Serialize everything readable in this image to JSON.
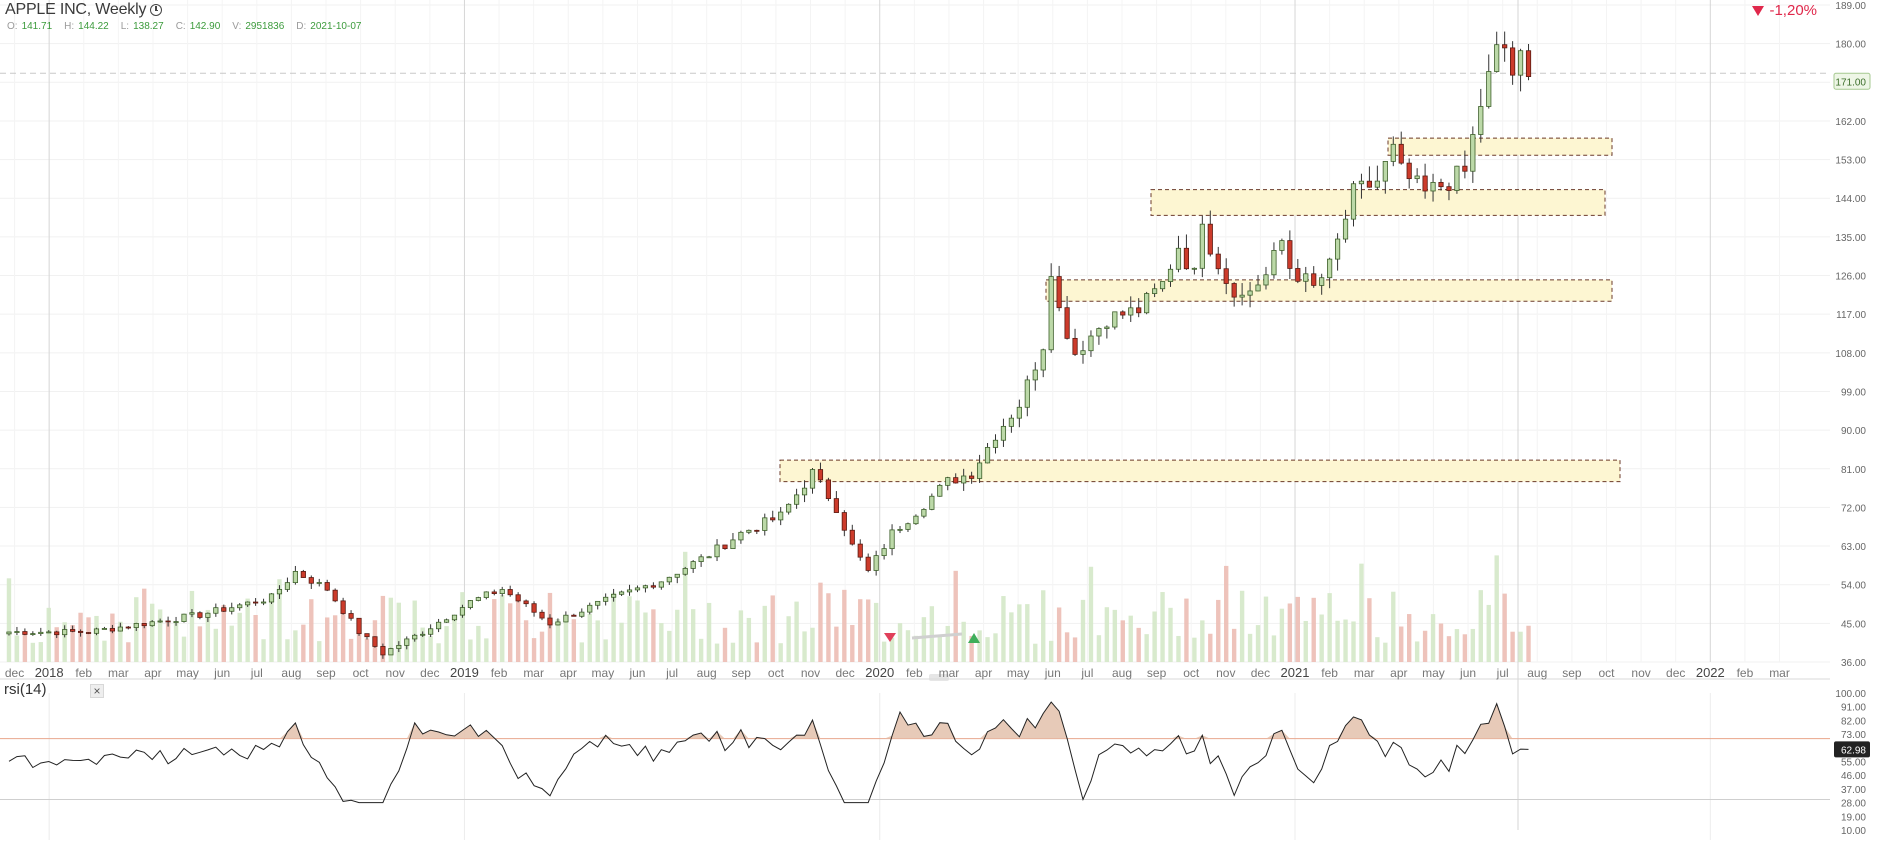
{
  "header": {
    "title": "APPLE INC, Weekly",
    "ohlc": [
      {
        "key": "O:",
        "value": "141.71"
      },
      {
        "key": "H:",
        "value": "144.22"
      },
      {
        "key": "L:",
        "value": "138.27"
      },
      {
        "key": "C:",
        "value": "142.90"
      },
      {
        "key": "V:",
        "value": "2951836"
      },
      {
        "key": "D:",
        "value": "2021-10-07"
      }
    ],
    "change": "-1,20%"
  },
  "rsi": {
    "label": "rsi(14)",
    "close": "×"
  },
  "colors": {
    "up": "#6aa84f",
    "down": "#cc3b2b",
    "zone_fill": "#fdf6d2",
    "rsi_fill": "#e4c4b0",
    "vol_up": "#d4e8c8",
    "vol_down": "#ecbcb4",
    "change": "#e0284b"
  },
  "chart_data": {
    "type": "candlestick",
    "price_axis": {
      "ticks": [
        "189.00",
        "180.00",
        "171.00",
        "162.00",
        "153.00",
        "144.00",
        "135.00",
        "126.00",
        "117.00",
        "108.00",
        "99.00",
        "90.00",
        "81.00",
        "72.00",
        "63.00",
        "54.00",
        "45.00",
        "36.00"
      ],
      "range": [
        36,
        189
      ],
      "current": "171.00"
    },
    "rsi_axis": {
      "ticks": [
        "100.00",
        "91.00",
        "82.00",
        "73.00",
        "64.00",
        "55.00",
        "46.00",
        "37.00",
        "28.00",
        "19.00",
        "10.00"
      ],
      "range": [
        10,
        100
      ],
      "current": "62.98",
      "overbought": 70,
      "oversold": 30
    },
    "time_axis": [
      "dec",
      "2018",
      "feb",
      "mar",
      "apr",
      "may",
      "jun",
      "jul",
      "aug",
      "sep",
      "oct",
      "nov",
      "dec",
      "2019",
      "feb",
      "mar",
      "apr",
      "may",
      "jun",
      "jul",
      "aug",
      "sep",
      "oct",
      "nov",
      "dec",
      "2020",
      "feb",
      "mar",
      "apr",
      "may",
      "jun",
      "jul",
      "aug",
      "sep",
      "oct",
      "nov",
      "dec",
      "2021",
      "feb",
      "mar",
      "apr",
      "may",
      "jun",
      "jul",
      "aug",
      "sep",
      "oct",
      "nov",
      "dec",
      "2022",
      "feb",
      "mar"
    ],
    "zones": [
      {
        "low": 154,
        "high": 158
      },
      {
        "low": 140,
        "high": 146
      },
      {
        "low": 120,
        "high": 125
      },
      {
        "low": 78,
        "high": 83
      }
    ],
    "close_anchors": [
      [
        0,
        43
      ],
      [
        10,
        43
      ],
      [
        24,
        47
      ],
      [
        33,
        51
      ],
      [
        36,
        57
      ],
      [
        40,
        53
      ],
      [
        44,
        43
      ],
      [
        47,
        38
      ],
      [
        52,
        43
      ],
      [
        58,
        50
      ],
      [
        62,
        53
      ],
      [
        68,
        45
      ],
      [
        76,
        51
      ],
      [
        82,
        55
      ],
      [
        88,
        61
      ],
      [
        92,
        66
      ],
      [
        97,
        70
      ],
      [
        101,
        80
      ],
      [
        104,
        72
      ],
      [
        106,
        63
      ],
      [
        108,
        57
      ],
      [
        111,
        66
      ],
      [
        114,
        71
      ],
      [
        118,
        78
      ],
      [
        121,
        80
      ],
      [
        124,
        89
      ],
      [
        127,
        96
      ],
      [
        130,
        110
      ],
      [
        131,
        128
      ],
      [
        132,
        118
      ],
      [
        134,
        108
      ],
      [
        138,
        116
      ],
      [
        142,
        118
      ],
      [
        145,
        124
      ],
      [
        147,
        133
      ],
      [
        149,
        126
      ],
      [
        150,
        140
      ],
      [
        151,
        133
      ],
      [
        153,
        125
      ],
      [
        155,
        121
      ],
      [
        158,
        126
      ],
      [
        160,
        134
      ],
      [
        161,
        128
      ],
      [
        164,
        123
      ],
      [
        166,
        128
      ],
      [
        169,
        145
      ],
      [
        172,
        148
      ],
      [
        174,
        155
      ],
      [
        175,
        150
      ],
      [
        178,
        145
      ],
      [
        180,
        147
      ],
      [
        183,
        150
      ],
      [
        185,
        166
      ],
      [
        187,
        178
      ],
      [
        188,
        179
      ],
      [
        189,
        173
      ],
      [
        190,
        176
      ],
      [
        191,
        171
      ]
    ],
    "total_weeks": 192
  }
}
